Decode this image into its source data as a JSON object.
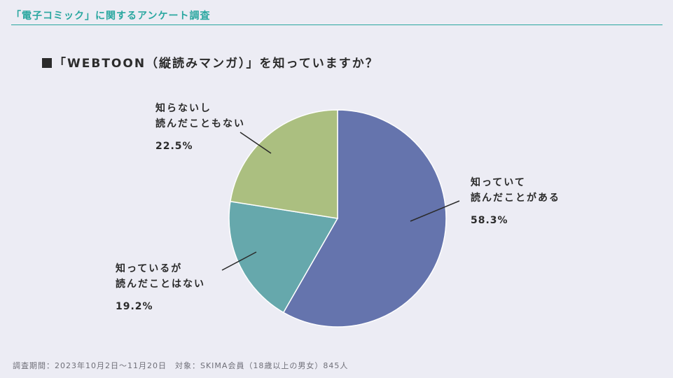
{
  "header": {
    "title": "「電子コミック」に関するアンケート調査"
  },
  "question": "「WEBTOON（縦読みマンガ）」を知っていますか？",
  "colors": {
    "accent": "#2aa7a0",
    "slice_1": "#6574ad",
    "slice_2": "#66a8ac",
    "slice_3": "#abbf80"
  },
  "chart_data": {
    "type": "pie",
    "title": "「WEBTOON（縦読みマンガ）」を知っていますか？",
    "slices": [
      {
        "line1": "知っていて",
        "line2": "読んだことがある",
        "value": 58.3,
        "value_label": "58.3%",
        "color": "#6574ad"
      },
      {
        "line1": "知っているが",
        "line2": "読んだことはない",
        "value": 19.2,
        "value_label": "19.2%",
        "color": "#66a8ac"
      },
      {
        "line1": "知らないし",
        "line2": "読んだこともない",
        "value": 22.5,
        "value_label": "22.5%",
        "color": "#abbf80"
      }
    ]
  },
  "footnote": "調査期間：2023年10月2日〜11月20日　対象：SKIMA会員（18歳以上の男女）845人"
}
